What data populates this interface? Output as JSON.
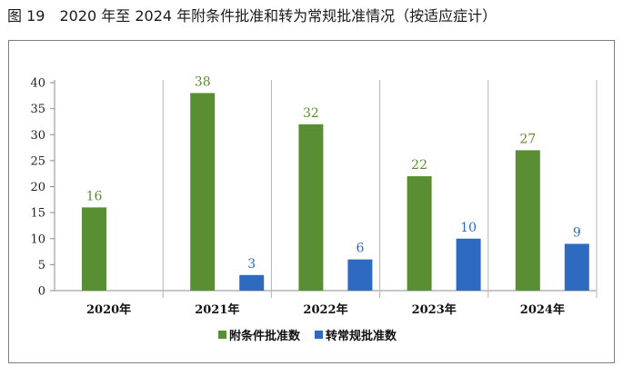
{
  "figure_title": "图 19　2020 年至 2024 年附条件批准和转为常规批准情况（按适应症计）",
  "colors": {
    "series1": "#5a8e32",
    "series2": "#2e6ac0"
  },
  "chart_data": {
    "type": "bar",
    "categories": [
      "2020年",
      "2021年",
      "2022年",
      "2023年",
      "2024年"
    ],
    "series": [
      {
        "name": "附条件批准数",
        "values": [
          16,
          38,
          32,
          22,
          27
        ]
      },
      {
        "name": "转常规批准数",
        "values": [
          null,
          3,
          6,
          10,
          9
        ]
      }
    ],
    "yticks": [
      0,
      5,
      10,
      15,
      20,
      25,
      30,
      35,
      40
    ],
    "ylim": [
      0,
      40
    ],
    "legend_position": "bottom",
    "title": "",
    "xlabel": "",
    "ylabel": ""
  }
}
